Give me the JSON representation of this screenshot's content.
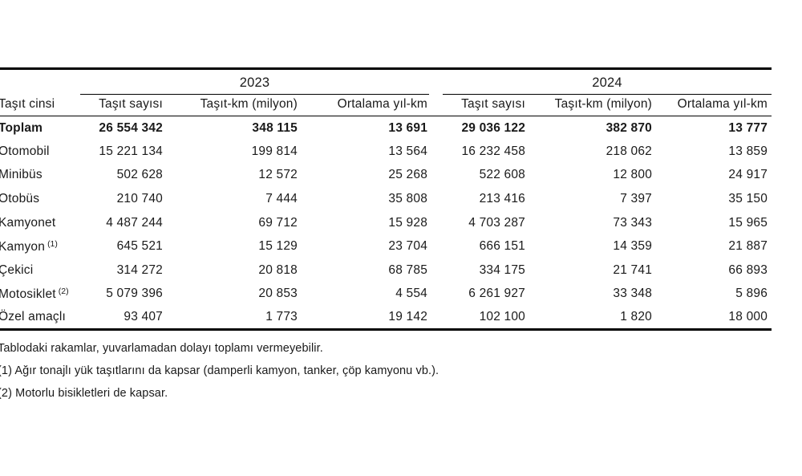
{
  "table": {
    "vehicle_type_header": "Taşıt cinsi",
    "year_groups": [
      "2023",
      "2024"
    ],
    "per_year_headers": [
      "Taşıt sayısı",
      "Taşıt-km (milyon)",
      "Ortalama yıl-km"
    ],
    "rows": [
      {
        "label": "Toplam",
        "sup": "",
        "bold": true,
        "y2023": [
          "26 554 342",
          "348 115",
          "13 691"
        ],
        "y2024": [
          "29 036 122",
          "382 870",
          "13 777"
        ]
      },
      {
        "label": "Otomobil",
        "sup": "",
        "bold": false,
        "y2023": [
          "15 221 134",
          "199 814",
          "13 564"
        ],
        "y2024": [
          "16 232 458",
          "218 062",
          "13 859"
        ]
      },
      {
        "label": "Minibüs",
        "sup": "",
        "bold": false,
        "y2023": [
          "502 628",
          "12 572",
          "25 268"
        ],
        "y2024": [
          "522 608",
          "12 800",
          "24 917"
        ]
      },
      {
        "label": "Otobüs",
        "sup": "",
        "bold": false,
        "y2023": [
          "210 740",
          "7 444",
          "35 808"
        ],
        "y2024": [
          "213 416",
          "7 397",
          "35 150"
        ]
      },
      {
        "label": "Kamyonet",
        "sup": "",
        "bold": false,
        "y2023": [
          "4 487 244",
          "69 712",
          "15 928"
        ],
        "y2024": [
          "4 703 287",
          "73 343",
          "15 965"
        ]
      },
      {
        "label": "Kamyon",
        "sup": "(1)",
        "bold": false,
        "y2023": [
          "645 521",
          "15 129",
          "23 704"
        ],
        "y2024": [
          "666 151",
          "14 359",
          "21 887"
        ]
      },
      {
        "label": "Çekici",
        "sup": "",
        "bold": false,
        "y2023": [
          "314 272",
          "20 818",
          "68 785"
        ],
        "y2024": [
          "334 175",
          "21 741",
          "66 893"
        ]
      },
      {
        "label": "Motosiklet",
        "sup": "(2)",
        "bold": false,
        "y2023": [
          "5 079 396",
          "20 853",
          "4 554"
        ],
        "y2024": [
          "6 261 927",
          "33 348",
          "5 896"
        ]
      },
      {
        "label": "Özel amaçlı",
        "sup": "",
        "bold": false,
        "y2023": [
          "93 407",
          "1 773",
          "19 142"
        ],
        "y2024": [
          "102 100",
          "1 820",
          "18 000"
        ]
      }
    ]
  },
  "footnotes": [
    "Tablodaki rakamlar, yuvarlamadan dolayı toplamı vermeyebilir.",
    "(1) Ağır tonajlı yük  taşıtlarını da kapsar (damperli kamyon, tanker, çöp kamyonu vb.).",
    "(2) Motorlu bisikletleri de kapsar."
  ]
}
